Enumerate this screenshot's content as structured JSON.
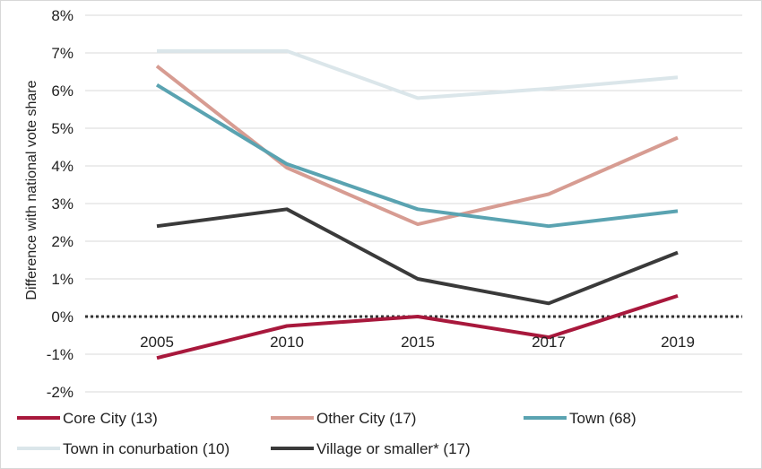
{
  "chart_data": {
    "type": "line",
    "ylabel": "Difference with national vote share",
    "x": [
      "2005",
      "2010",
      "2015",
      "2017",
      "2019"
    ],
    "ylim": [
      -2,
      8
    ],
    "yticks": [
      -2,
      -1,
      0,
      1,
      2,
      3,
      4,
      5,
      6,
      7,
      8
    ],
    "ytick_labels": [
      "-2%",
      "-1%",
      "0%",
      "1%",
      "2%",
      "3%",
      "4%",
      "5%",
      "6%",
      "7%",
      "8%"
    ],
    "grid": true,
    "reference_line": {
      "y": 0,
      "style": "dotted"
    },
    "legend_position": "bottom",
    "series": [
      {
        "name": "Core City (13)",
        "color": "#a8183c",
        "values": [
          -1.1,
          -0.25,
          0.0,
          -0.55,
          0.55
        ]
      },
      {
        "name": "Other City (17)",
        "color": "#d79c92",
        "values": [
          6.65,
          3.95,
          2.45,
          3.25,
          4.75
        ]
      },
      {
        "name": "Town (68)",
        "color": "#5aa3b1",
        "values": [
          6.15,
          4.05,
          2.85,
          2.4,
          2.8
        ]
      },
      {
        "name": "Town in conurbation (10)",
        "color": "#dbe6ea",
        "values": [
          7.05,
          7.05,
          5.8,
          6.05,
          6.35
        ]
      },
      {
        "name": "Village or smaller* (17)",
        "color": "#3a3a3a",
        "values": [
          2.4,
          2.85,
          1.0,
          0.35,
          1.7
        ]
      }
    ]
  }
}
